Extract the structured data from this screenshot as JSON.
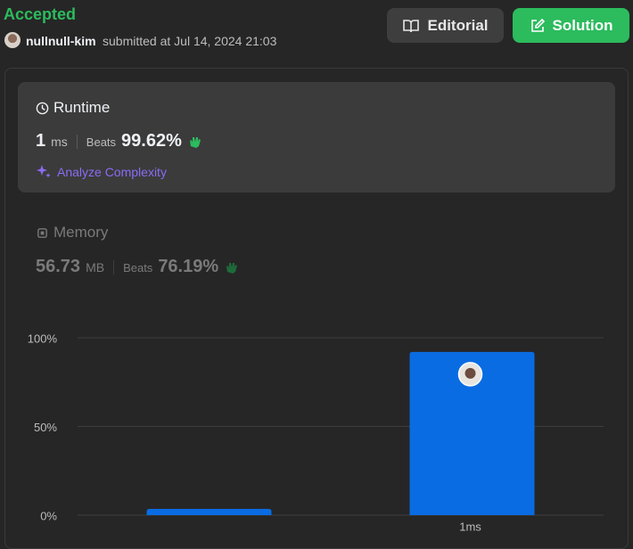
{
  "header": {
    "status": "Accepted",
    "user": "nullnull-kim",
    "submitted": "submitted at Jul 14, 2024 21:03",
    "buttons": [
      "Editorial",
      "Solution"
    ]
  },
  "runtime": {
    "label": "Runtime",
    "value": "1",
    "unit": "ms",
    "beats_label": "Beats",
    "beats": "99.62%",
    "analyze": "Analyze Complexity"
  },
  "memory": {
    "label": "Memory",
    "value": "56.73",
    "unit": "MB",
    "beats_label": "Beats",
    "beats": "76.19%"
  },
  "chart_data": {
    "type": "bar",
    "categories": [
      null,
      "1ms"
    ],
    "values": [
      3.5,
      92
    ],
    "color": "#0a6ce2",
    "ylim": [
      0,
      100
    ],
    "yticks": [
      {
        "value": 0,
        "label": "0%"
      },
      {
        "value": 50,
        "label": "50%"
      },
      {
        "value": 100,
        "label": "100%"
      }
    ],
    "grid": true
  }
}
